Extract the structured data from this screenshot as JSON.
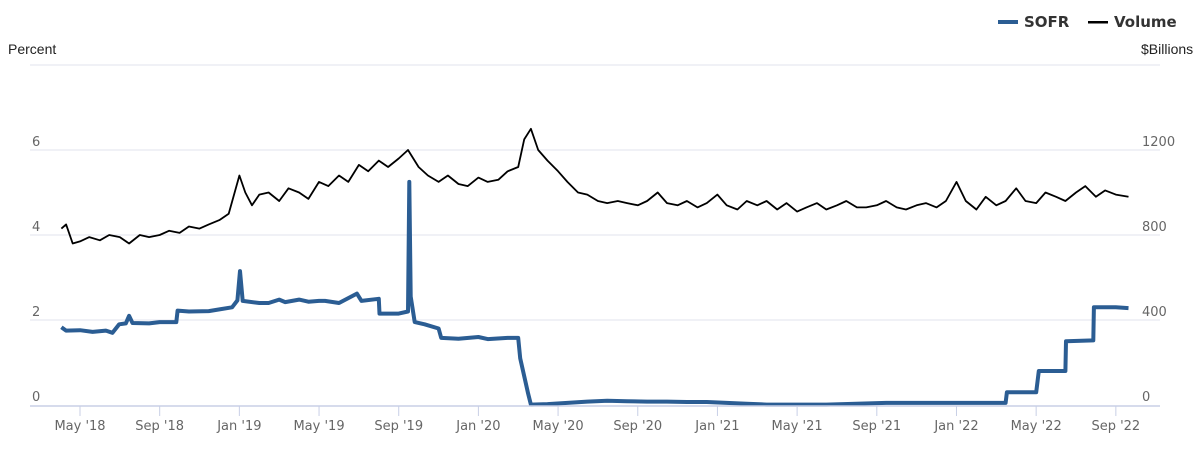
{
  "chart_data": {
    "type": "line",
    "title": "",
    "legend": {
      "position": "top-right",
      "entries": [
        "SOFR",
        "Volume"
      ]
    },
    "left_axis": {
      "label": "Percent",
      "ticks": [
        "0",
        "2",
        "4",
        "6"
      ],
      "range": [
        0,
        8
      ]
    },
    "right_axis": {
      "label": "$Billions",
      "ticks": [
        "0",
        "400",
        "800",
        "1200"
      ],
      "range": [
        0,
        1600
      ]
    },
    "x_ticks": [
      "May '18",
      "Sep '18",
      "Jan '19",
      "May '19",
      "Sep '19",
      "Jan '20",
      "May '20",
      "Sep '20",
      "Jan '21",
      "May '21",
      "Sep '21",
      "Jan '22",
      "May '22",
      "Sep '22"
    ],
    "grid": true,
    "series": [
      {
        "name": "SOFR",
        "axis": "left",
        "color": "#2b5d93",
        "points": [
          [
            "2018-04-03",
            1.83
          ],
          [
            "2018-04-10",
            1.75
          ],
          [
            "2018-05-01",
            1.76
          ],
          [
            "2018-05-20",
            1.72
          ],
          [
            "2018-06-10",
            1.75
          ],
          [
            "2018-06-20",
            1.7
          ],
          [
            "2018-06-30",
            1.9
          ],
          [
            "2018-07-10",
            1.92
          ],
          [
            "2018-07-15",
            2.1
          ],
          [
            "2018-07-20",
            1.93
          ],
          [
            "2018-08-15",
            1.92
          ],
          [
            "2018-09-01",
            1.95
          ],
          [
            "2018-09-26",
            1.95
          ],
          [
            "2018-09-28",
            2.22
          ],
          [
            "2018-10-15",
            2.2
          ],
          [
            "2018-11-15",
            2.21
          ],
          [
            "2018-12-01",
            2.25
          ],
          [
            "2018-12-20",
            2.3
          ],
          [
            "2018-12-28",
            2.46
          ],
          [
            "2019-01-02",
            3.15
          ],
          [
            "2019-01-06",
            2.45
          ],
          [
            "2019-02-01",
            2.4
          ],
          [
            "2019-02-15",
            2.4
          ],
          [
            "2019-03-01",
            2.48
          ],
          [
            "2019-03-10",
            2.42
          ],
          [
            "2019-04-01",
            2.48
          ],
          [
            "2019-04-15",
            2.43
          ],
          [
            "2019-05-01",
            2.45
          ],
          [
            "2019-05-10",
            2.45
          ],
          [
            "2019-06-01",
            2.4
          ],
          [
            "2019-06-28",
            2.62
          ],
          [
            "2019-07-05",
            2.45
          ],
          [
            "2019-07-31",
            2.5
          ],
          [
            "2019-08-02",
            2.15
          ],
          [
            "2019-09-01",
            2.15
          ],
          [
            "2019-09-15",
            2.2
          ],
          [
            "2019-09-17",
            5.25
          ],
          [
            "2019-09-19",
            2.55
          ],
          [
            "2019-09-25",
            1.95
          ],
          [
            "2019-10-10",
            1.9
          ],
          [
            "2019-10-31",
            1.8
          ],
          [
            "2019-11-05",
            1.58
          ],
          [
            "2019-12-01",
            1.56
          ],
          [
            "2019-12-31",
            1.6
          ],
          [
            "2020-01-15",
            1.55
          ],
          [
            "2020-02-15",
            1.58
          ],
          [
            "2020-03-01",
            1.58
          ],
          [
            "2020-03-04",
            1.1
          ],
          [
            "2020-03-16",
            0.26
          ],
          [
            "2020-03-20",
            0.01
          ],
          [
            "2020-04-15",
            0.02
          ],
          [
            "2020-05-15",
            0.05
          ],
          [
            "2020-06-15",
            0.08
          ],
          [
            "2020-07-15",
            0.1
          ],
          [
            "2020-08-15",
            0.09
          ],
          [
            "2020-09-15",
            0.08
          ],
          [
            "2020-10-15",
            0.08
          ],
          [
            "2020-11-15",
            0.07
          ],
          [
            "2020-12-15",
            0.07
          ],
          [
            "2021-01-15",
            0.05
          ],
          [
            "2021-02-15",
            0.03
          ],
          [
            "2021-03-15",
            0.01
          ],
          [
            "2021-06-15",
            0.01
          ],
          [
            "2021-09-15",
            0.05
          ],
          [
            "2021-12-15",
            0.05
          ],
          [
            "2022-03-15",
            0.05
          ],
          [
            "2022-03-17",
            0.3
          ],
          [
            "2022-05-01",
            0.3
          ],
          [
            "2022-05-05",
            0.8
          ],
          [
            "2022-06-15",
            0.8
          ],
          [
            "2022-06-16",
            1.5
          ],
          [
            "2022-07-27",
            1.52
          ],
          [
            "2022-07-28",
            2.3
          ],
          [
            "2022-09-01",
            2.3
          ],
          [
            "2022-09-20",
            2.28
          ]
        ]
      },
      {
        "name": "Volume",
        "axis": "right",
        "color": "#000000",
        "points": [
          [
            "2018-04-03",
            830
          ],
          [
            "2018-04-10",
            850
          ],
          [
            "2018-04-20",
            760
          ],
          [
            "2018-05-01",
            770
          ],
          [
            "2018-05-15",
            790
          ],
          [
            "2018-06-01",
            775
          ],
          [
            "2018-06-15",
            800
          ],
          [
            "2018-07-01",
            790
          ],
          [
            "2018-07-15",
            760
          ],
          [
            "2018-08-01",
            800
          ],
          [
            "2018-08-15",
            790
          ],
          [
            "2018-09-01",
            800
          ],
          [
            "2018-09-15",
            820
          ],
          [
            "2018-10-01",
            810
          ],
          [
            "2018-10-15",
            840
          ],
          [
            "2018-11-01",
            830
          ],
          [
            "2018-11-15",
            850
          ],
          [
            "2018-12-01",
            870
          ],
          [
            "2018-12-15",
            900
          ],
          [
            "2018-12-31",
            1080
          ],
          [
            "2019-01-10",
            1000
          ],
          [
            "2019-01-20",
            940
          ],
          [
            "2019-02-01",
            990
          ],
          [
            "2019-02-15",
            1000
          ],
          [
            "2019-03-01",
            960
          ],
          [
            "2019-03-15",
            1020
          ],
          [
            "2019-04-01",
            1000
          ],
          [
            "2019-04-15",
            970
          ],
          [
            "2019-05-01",
            1050
          ],
          [
            "2019-05-15",
            1030
          ],
          [
            "2019-06-01",
            1080
          ],
          [
            "2019-06-15",
            1050
          ],
          [
            "2019-07-01",
            1130
          ],
          [
            "2019-07-15",
            1100
          ],
          [
            "2019-08-01",
            1150
          ],
          [
            "2019-08-15",
            1120
          ],
          [
            "2019-09-01",
            1160
          ],
          [
            "2019-09-15",
            1200
          ],
          [
            "2019-10-01",
            1120
          ],
          [
            "2019-10-15",
            1080
          ],
          [
            "2019-11-01",
            1050
          ],
          [
            "2019-11-15",
            1080
          ],
          [
            "2019-12-01",
            1040
          ],
          [
            "2019-12-15",
            1030
          ],
          [
            "2020-01-01",
            1070
          ],
          [
            "2020-01-15",
            1050
          ],
          [
            "2020-02-01",
            1060
          ],
          [
            "2020-02-15",
            1100
          ],
          [
            "2020-03-01",
            1120
          ],
          [
            "2020-03-10",
            1250
          ],
          [
            "2020-03-20",
            1300
          ],
          [
            "2020-04-01",
            1200
          ],
          [
            "2020-04-15",
            1150
          ],
          [
            "2020-05-01",
            1100
          ],
          [
            "2020-05-15",
            1050
          ],
          [
            "2020-06-01",
            1000
          ],
          [
            "2020-06-15",
            990
          ],
          [
            "2020-07-01",
            960
          ],
          [
            "2020-07-15",
            950
          ],
          [
            "2020-08-01",
            960
          ],
          [
            "2020-08-15",
            950
          ],
          [
            "2020-09-01",
            940
          ],
          [
            "2020-09-15",
            960
          ],
          [
            "2020-10-01",
            1000
          ],
          [
            "2020-10-15",
            950
          ],
          [
            "2020-11-01",
            940
          ],
          [
            "2020-11-15",
            960
          ],
          [
            "2020-12-01",
            930
          ],
          [
            "2020-12-15",
            950
          ],
          [
            "2021-01-01",
            990
          ],
          [
            "2021-01-15",
            940
          ],
          [
            "2021-02-01",
            920
          ],
          [
            "2021-02-15",
            960
          ],
          [
            "2021-03-01",
            940
          ],
          [
            "2021-03-15",
            960
          ],
          [
            "2021-04-01",
            920
          ],
          [
            "2021-04-15",
            950
          ],
          [
            "2021-05-01",
            910
          ],
          [
            "2021-05-15",
            930
          ],
          [
            "2021-06-01",
            950
          ],
          [
            "2021-06-15",
            920
          ],
          [
            "2021-07-01",
            940
          ],
          [
            "2021-07-15",
            960
          ],
          [
            "2021-08-01",
            930
          ],
          [
            "2021-08-15",
            930
          ],
          [
            "2021-09-01",
            940
          ],
          [
            "2021-09-15",
            960
          ],
          [
            "2021-10-01",
            930
          ],
          [
            "2021-10-15",
            920
          ],
          [
            "2021-11-01",
            940
          ],
          [
            "2021-11-15",
            950
          ],
          [
            "2021-12-01",
            930
          ],
          [
            "2021-12-15",
            960
          ],
          [
            "2022-01-01",
            1050
          ],
          [
            "2022-01-15",
            960
          ],
          [
            "2022-02-01",
            920
          ],
          [
            "2022-02-15",
            980
          ],
          [
            "2022-03-01",
            940
          ],
          [
            "2022-03-15",
            960
          ],
          [
            "2022-04-01",
            1020
          ],
          [
            "2022-04-15",
            960
          ],
          [
            "2022-05-01",
            950
          ],
          [
            "2022-05-15",
            1000
          ],
          [
            "2022-06-01",
            980
          ],
          [
            "2022-06-15",
            960
          ],
          [
            "2022-07-01",
            1000
          ],
          [
            "2022-07-15",
            1030
          ],
          [
            "2022-08-01",
            980
          ],
          [
            "2022-08-15",
            1010
          ],
          [
            "2022-09-01",
            990
          ],
          [
            "2022-09-20",
            980
          ]
        ]
      }
    ]
  }
}
